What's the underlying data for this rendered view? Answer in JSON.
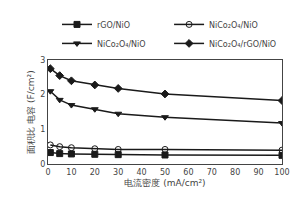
{
  "chart_data": {
    "type": "line",
    "xlabel": "电流密度 (mA/cm²)",
    "ylabel": "面积比 电容 (F/cm²)",
    "x": [
      1,
      5,
      10,
      20,
      30,
      50,
      100
    ],
    "xlim": [
      0,
      100
    ],
    "ylim": [
      0,
      3
    ],
    "xticks": [
      0,
      10,
      20,
      30,
      40,
      50,
      60,
      70,
      80,
      90,
      100
    ],
    "yticks": [
      0,
      1,
      2,
      3
    ],
    "grid": false,
    "legend": "upper right",
    "series": [
      {
        "name": "rGO/NiO",
        "values": [
          0.33,
          0.3,
          0.29,
          0.28,
          0.27,
          0.26,
          0.25
        ],
        "color": "#1a1a1a",
        "marker": "square"
      },
      {
        "name": "NiCo₂O₄/NiO",
        "values": [
          0.55,
          0.5,
          0.47,
          0.44,
          0.42,
          0.42,
          0.4
        ],
        "color": "#1a1a1a",
        "marker": "circle-open"
      },
      {
        "name": "NiCo₂O₄/NiO",
        "values": [
          2.1,
          1.85,
          1.7,
          1.58,
          1.45,
          1.35,
          1.18
        ],
        "color": "#1a1a1a",
        "marker": "triangle-down"
      },
      {
        "name": "NiCo₂O₄/rGO/NiO",
        "values": [
          2.75,
          2.55,
          2.4,
          2.28,
          2.18,
          2.02,
          1.83
        ],
        "color": "#1a1a1a",
        "marker": "diamond"
      }
    ]
  }
}
